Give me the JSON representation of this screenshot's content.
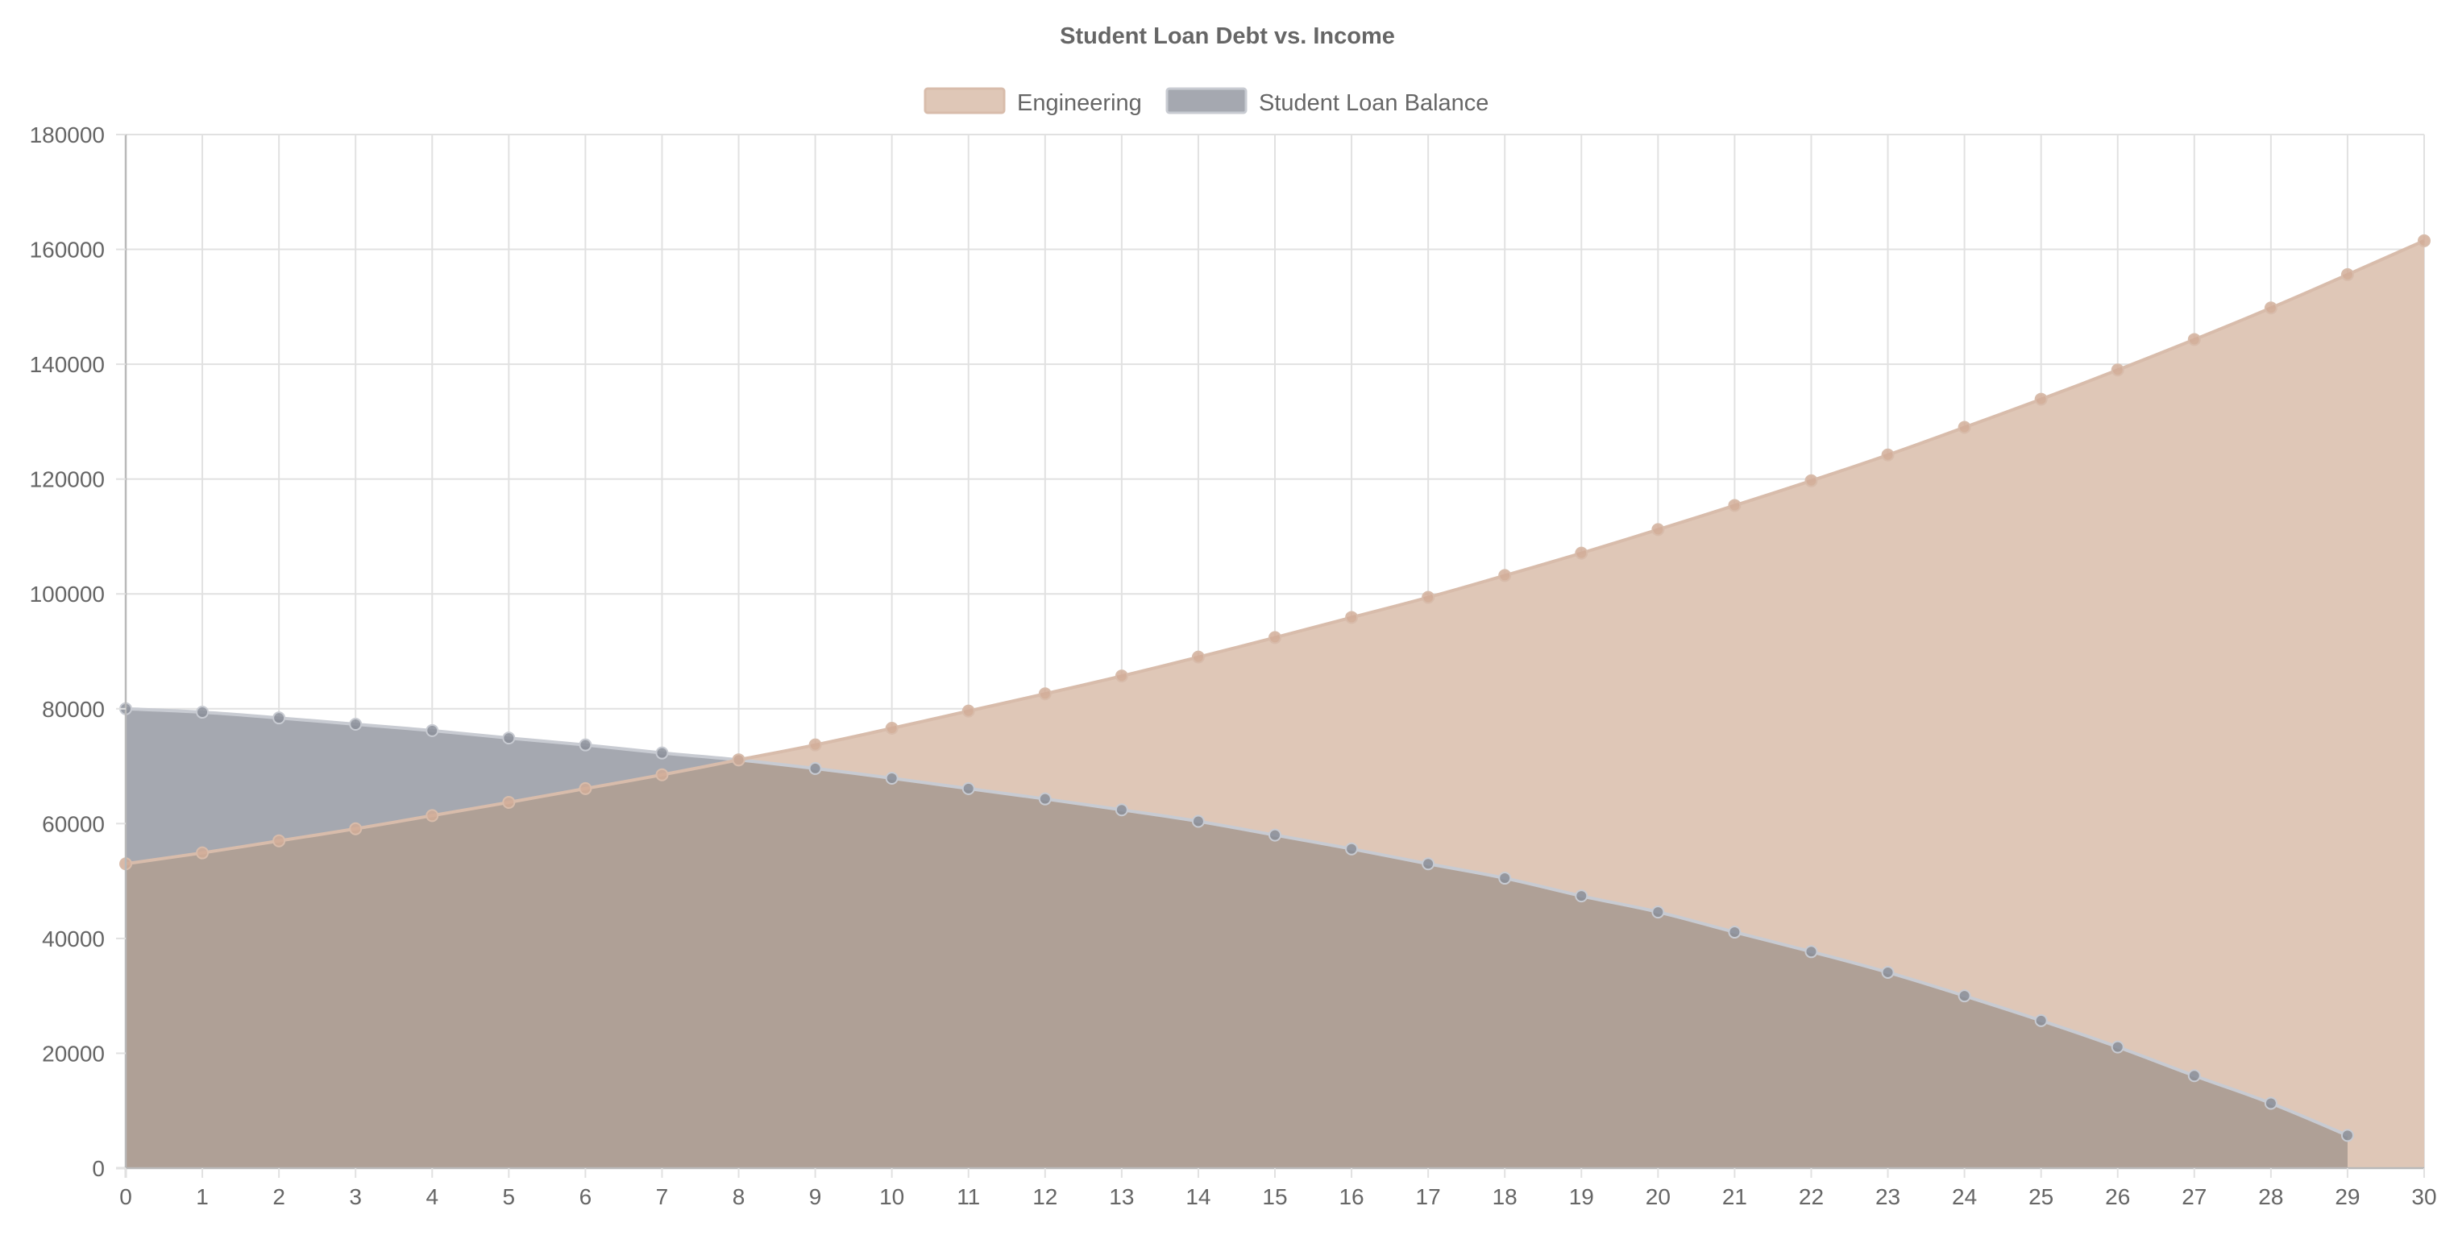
{
  "chart_data": {
    "type": "area",
    "title": "Student Loan Debt vs. Income",
    "xlabel": "",
    "ylabel": "",
    "x": [
      0,
      1,
      2,
      3,
      4,
      5,
      6,
      7,
      8,
      9,
      10,
      11,
      12,
      13,
      14,
      15,
      16,
      17,
      18,
      19,
      20,
      21,
      22,
      23,
      24,
      25,
      26,
      27,
      28,
      29,
      30
    ],
    "x_tick_labels": [
      "0",
      "1",
      "2",
      "3",
      "4",
      "5",
      "6",
      "7",
      "8",
      "9",
      "10",
      "11",
      "12",
      "13",
      "14",
      "15",
      "16",
      "17",
      "18",
      "19",
      "20",
      "21",
      "22",
      "23",
      "24",
      "25",
      "26",
      "27",
      "28",
      "29",
      "30"
    ],
    "ylim": [
      0,
      180000
    ],
    "y_ticks": [
      0,
      20000,
      40000,
      60000,
      80000,
      100000,
      120000,
      140000,
      160000,
      180000
    ],
    "y_tick_labels": [
      "0",
      "20000",
      "40000",
      "60000",
      "80000",
      "100000",
      "120000",
      "140000",
      "160000",
      "180000"
    ],
    "grid": true,
    "legend_position": "top",
    "series": [
      {
        "name": "Engineering",
        "fill_color": "#dfc7b7",
        "line_color": "#d8bcab",
        "point_color": "#d2ad98",
        "values": [
          53000,
          54900,
          57000,
          59100,
          61400,
          63700,
          66100,
          68500,
          71100,
          73700,
          76600,
          79600,
          82600,
          85700,
          89000,
          92400,
          95900,
          99400,
          103200,
          107100,
          111200,
          115400,
          119700,
          124200,
          129000,
          133900,
          139000,
          144300,
          149800,
          155600,
          161500
        ]
      },
      {
        "name": "Student Loan Balance",
        "fill_color": "#a5a8b0",
        "line_color": "#c8cbd2",
        "point_color": "#8a8e99",
        "values": [
          80000,
          79400,
          78400,
          77300,
          76200,
          74900,
          73700,
          72300,
          71100,
          69600,
          67900,
          66100,
          64300,
          62400,
          60400,
          58000,
          55600,
          53000,
          50500,
          47400,
          44600,
          41100,
          37700,
          34100,
          30000,
          25700,
          21100,
          16100,
          11300,
          5700,
          null
        ]
      }
    ],
    "overlap_color": "#afa096"
  }
}
